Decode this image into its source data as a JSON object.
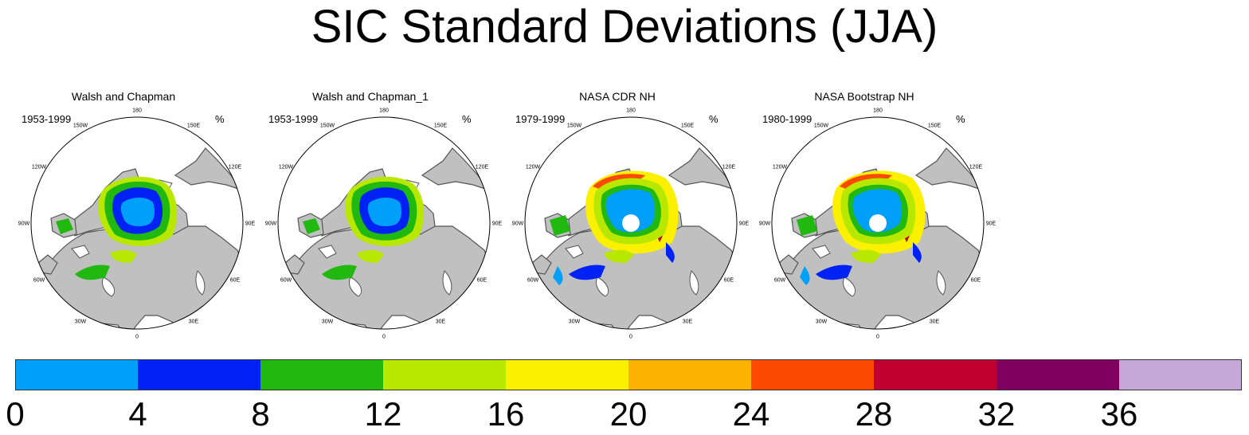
{
  "title": "SIC Standard Deviations (JJA)",
  "panels": [
    {
      "name": "Walsh and Chapman",
      "years": "1953-1999",
      "unit": "%"
    },
    {
      "name": "Walsh and Chapman_1",
      "years": "1953-1999",
      "unit": "%"
    },
    {
      "name": "NASA CDR NH",
      "years": "1979-1999",
      "unit": "%"
    },
    {
      "name": "NASA Bootstrap NH",
      "years": "1980-1999",
      "unit": "%"
    }
  ],
  "longitude_labels": [
    "180",
    "150E",
    "120E",
    "90E",
    "60E",
    "30E",
    "0",
    "30W",
    "60W",
    "90W",
    "120W",
    "150W"
  ],
  "colorbar": {
    "ticks": [
      "0",
      "4",
      "8",
      "12",
      "16",
      "20",
      "24",
      "28",
      "32",
      "36"
    ],
    "colors": [
      "#009ffa",
      "#0022f5",
      "#21b80f",
      "#b8e800",
      "#faf000",
      "#fcb200",
      "#fc4a00",
      "#bf0030",
      "#800060",
      "#c6a8d8"
    ]
  },
  "chart_data": {
    "type": "heatmap",
    "title": "SIC Standard Deviations (JJA)",
    "projection": "north polar stereographic",
    "panels": [
      {
        "name": "Walsh and Chapman",
        "period": "1953-1999",
        "central_arctic_range": [
          4,
          8
        ],
        "marginal_ice_range": [
          8,
          20
        ]
      },
      {
        "name": "Walsh and Chapman_1",
        "period": "1953-1999",
        "central_arctic_range": [
          4,
          8
        ],
        "marginal_ice_range": [
          8,
          20
        ]
      },
      {
        "name": "NASA CDR NH",
        "period": "1979-1999",
        "central_arctic_range": [
          0,
          4
        ],
        "marginal_ice_range": [
          8,
          32
        ]
      },
      {
        "name": "NASA Bootstrap NH",
        "period": "1980-1999",
        "central_arctic_range": [
          0,
          4
        ],
        "marginal_ice_range": [
          8,
          32
        ]
      }
    ],
    "units": "%",
    "colorbar_levels": [
      0,
      4,
      8,
      12,
      16,
      20,
      24,
      28,
      32,
      36
    ],
    "land_color": "#c0c0c0",
    "ocean_color": "#ffffff"
  }
}
